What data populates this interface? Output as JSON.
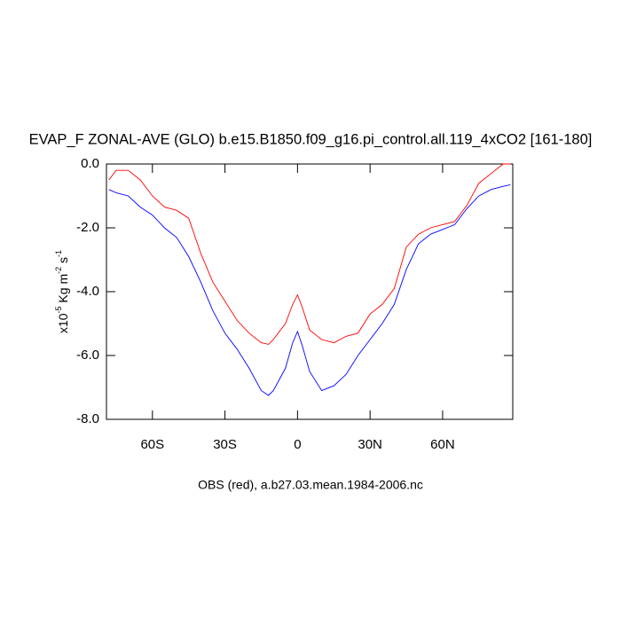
{
  "chart_data": {
    "type": "line",
    "title": "EVAP_F ZONAL-AVE (GLO) b.e15.B1850.f09_g16.pi_control.all.119_4xCO2 [161-180]",
    "y_label": [
      "x10",
      "-5",
      " Kg m",
      "-2",
      " s",
      "-1"
    ],
    "caption": "OBS (red), a.b27.03.mean.1984-2006.nc",
    "x": [
      -78,
      -75,
      -70,
      -65,
      -60,
      -55,
      -50,
      -45,
      -40,
      -35,
      -30,
      -25,
      -20,
      -15,
      -12,
      -10,
      -5,
      -2,
      0,
      2,
      5,
      10,
      15,
      20,
      25,
      30,
      35,
      40,
      45,
      50,
      55,
      60,
      65,
      70,
      75,
      80,
      85,
      88
    ],
    "series": [
      {
        "color": "#ff0000",
        "values": [
          -0.5,
          -0.2,
          -0.2,
          -0.5,
          -1.0,
          -1.35,
          -1.45,
          -1.7,
          -2.8,
          -3.7,
          -4.3,
          -4.9,
          -5.3,
          -5.6,
          -5.65,
          -5.5,
          -5.0,
          -4.4,
          -4.1,
          -4.5,
          -5.2,
          -5.5,
          -5.6,
          -5.4,
          -5.3,
          -4.7,
          -4.4,
          -3.9,
          -2.6,
          -2.2,
          -2.0,
          -1.9,
          -1.8,
          -1.3,
          -0.6,
          -0.3,
          0,
          0
        ]
      },
      {
        "color": "#0000ff",
        "values": [
          -0.8,
          -0.9,
          -1.0,
          -1.35,
          -1.6,
          -2.0,
          -2.3,
          -2.9,
          -3.7,
          -4.6,
          -5.3,
          -5.8,
          -6.4,
          -7.1,
          -7.25,
          -7.1,
          -6.4,
          -5.6,
          -5.25,
          -5.7,
          -6.5,
          -7.1,
          -6.95,
          -6.6,
          -6.0,
          -5.5,
          -5.0,
          -4.4,
          -3.3,
          -2.5,
          -2.2,
          -2.05,
          -1.9,
          -1.4,
          -1.0,
          -0.8,
          -0.7,
          -0.65
        ]
      }
    ],
    "xlim": [
      -79,
      89
    ],
    "xticks": [
      {
        "value": -60,
        "label": "60S"
      },
      {
        "value": -30,
        "label": "30S"
      },
      0,
      {
        "value": 30,
        "label": "30N"
      },
      {
        "value": 60,
        "label": "60N"
      }
    ],
    "ylim": [
      -8,
      0
    ],
    "yticks": [
      {
        "value": 0,
        "label": "0.0"
      },
      {
        "value": -2,
        "label": "-2.0"
      },
      {
        "value": -4,
        "label": "-4.0"
      },
      {
        "value": -6,
        "label": "-6.0"
      },
      {
        "value": -8,
        "label": "-8.0"
      }
    ]
  }
}
